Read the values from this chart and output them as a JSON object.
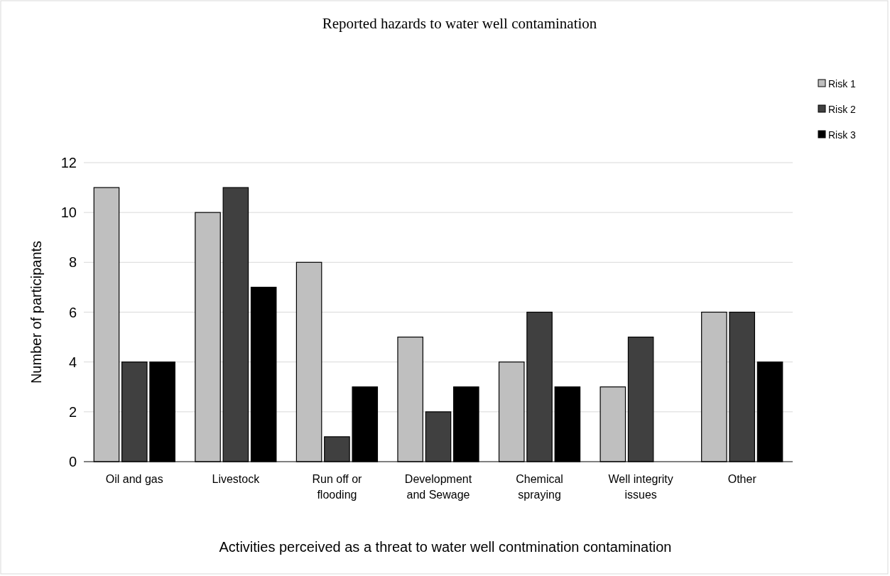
{
  "chart_data": {
    "type": "bar",
    "title": "Reported hazards to water well contamination",
    "xlabel": "Activities perceived as a threat to water well contmination contamination",
    "ylabel": "Number of participants",
    "categories": [
      "Oil and gas",
      "Livestock",
      "Run off or flooding",
      "Development and Sewage",
      "Chemical spraying",
      "Well integrity issues",
      "Other"
    ],
    "series": [
      {
        "name": "Risk 1",
        "color": "#bfbfbf",
        "values": [
          11,
          10,
          8,
          5,
          4,
          3,
          6
        ]
      },
      {
        "name": "Risk 2",
        "color": "#404040",
        "values": [
          4,
          11,
          1,
          2,
          6,
          5,
          6
        ]
      },
      {
        "name": "Risk 3",
        "color": "#000000",
        "values": [
          4,
          7,
          3,
          3,
          3,
          0,
          4
        ]
      }
    ],
    "ylim": [
      0,
      12
    ],
    "yticks": [
      0,
      2,
      4,
      6,
      8,
      10,
      12
    ],
    "grid": "y",
    "legend": "top right"
  }
}
